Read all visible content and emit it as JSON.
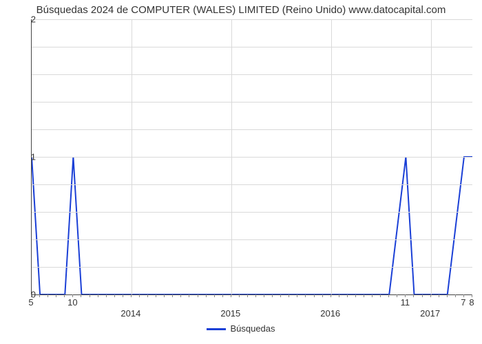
{
  "title": "Búsquedas 2024 de COMPUTER (WALES) LIMITED (Reino Unido) www.datocapital.com",
  "chart": {
    "type": "line",
    "series_color": "#1a3fd6",
    "background_color": "#ffffff",
    "grid_color": "#d9d9d9",
    "axis_color": "#444444",
    "line_width": 2,
    "xlim": [
      0,
      53
    ],
    "ylim": [
      0,
      2
    ],
    "yticks": [
      0,
      1,
      2
    ],
    "ytick_step": 1,
    "y_minor_count": 4,
    "xtick_years": [
      {
        "pos": 12,
        "label": "2014"
      },
      {
        "pos": 24,
        "label": "2015"
      },
      {
        "pos": 36,
        "label": "2016"
      },
      {
        "pos": 48,
        "label": "2017"
      }
    ],
    "xtick_nums": [
      {
        "pos": 0,
        "label": "5"
      },
      {
        "pos": 5,
        "label": "10"
      },
      {
        "pos": 45,
        "label": "11"
      },
      {
        "pos": 52,
        "label": "7"
      },
      {
        "pos": 53,
        "label": "8"
      }
    ],
    "minor_tick_step": 1,
    "data": [
      {
        "x": 0,
        "y": 1
      },
      {
        "x": 1,
        "y": 0
      },
      {
        "x": 4,
        "y": 0
      },
      {
        "x": 5,
        "y": 1
      },
      {
        "x": 6,
        "y": 0
      },
      {
        "x": 43,
        "y": 0
      },
      {
        "x": 45,
        "y": 1
      },
      {
        "x": 46,
        "y": 0
      },
      {
        "x": 50,
        "y": 0
      },
      {
        "x": 52,
        "y": 1
      },
      {
        "x": 53,
        "y": 1
      }
    ],
    "legend_label": "Búsquedas",
    "title_fontsize": 15,
    "label_fontsize": 13
  }
}
